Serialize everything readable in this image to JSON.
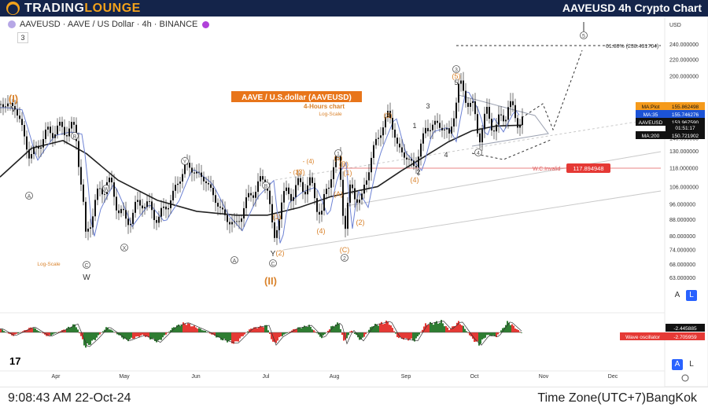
{
  "header": {
    "brand_part1": "TRADING",
    "brand_part2": "LOUNGE",
    "title": "AAVEUSD 4h Crypto Chart"
  },
  "symbol_line": "AAVEUSD · AAVE / US Dollar · 4h · BINANCE",
  "indicator_count": "3",
  "footer": {
    "time": "9:08:43 AM 22-Oct-24",
    "timezone": "Time Zone(UTC+7)BangKok"
  },
  "tv_logo": "17",
  "buttons": {
    "auto": "A",
    "log": "L"
  },
  "chart_data": {
    "type": "candlestick",
    "price_axis": {
      "currency": "USD",
      "scale": "log",
      "ticks": [
        "240.000000",
        "220.000000",
        "200.000000",
        "160.000000",
        "150.000000",
        "140.000000",
        "130.000000",
        "118.000000",
        "106.000000",
        "96.000000",
        "88.000000",
        "80.000000",
        "74.000000",
        "68.000000",
        "63.000000"
      ],
      "tick_values": [
        240,
        220,
        200,
        160,
        150,
        140,
        130,
        118,
        106,
        96,
        88,
        80,
        74,
        68,
        63
      ]
    },
    "time_axis": [
      "Apr",
      "May",
      "Jun",
      "Jul",
      "Aug",
      "Sep",
      "Oct",
      "Nov",
      "Dec"
    ],
    "labels": [
      {
        "name": "MA:Plot",
        "value": "155.862498",
        "bg": "#f59a1b",
        "fg": "#111111",
        "y": 155.86
      },
      {
        "name": "MA:35",
        "value": "155.746276",
        "bg": "#1c53d6",
        "fg": "#ffffff",
        "y": 155.75
      },
      {
        "name": "AAVEUSD",
        "value": "153.967590",
        "bg": "#111111",
        "fg": "#ffffff",
        "y": 153.97
      },
      {
        "name": "",
        "value": "01:51:17",
        "bg": "#111111",
        "fg": "#ffffff",
        "y": 151.3
      },
      {
        "name": "MA:200",
        "value": "150.721902",
        "bg": "#111111",
        "fg": "#ffffff",
        "y": 150.72
      }
    ],
    "indicator": {
      "name": "Wave oscillator",
      "values": [
        "-2.445885",
        "-2.705959"
      ]
    },
    "annotations": {
      "title": "AAVE / U.S.dollar (AAVEUSD)",
      "subtitle": "4-Hours chart",
      "scale_note": "Log-Scale",
      "scale_note_left": "Log-Scale",
      "fib_level": "61.80% (238.431704)",
      "invalidation_label": "W.C.Invalid",
      "invalidation_value": "117.894948",
      "wave_labels": [
        {
          "t": "(I)",
          "x": 17,
          "y": 130,
          "c": "#d9822b",
          "s": 13,
          "b": true
        },
        {
          "t": "(II)",
          "x": 344,
          "y": 362,
          "c": "#d9822b",
          "s": 13,
          "b": true
        },
        {
          "t": "W",
          "x": 110,
          "y": 356,
          "c": "#333",
          "s": 10
        },
        {
          "t": "Y",
          "x": 347,
          "y": 326,
          "c": "#333",
          "s": 10
        },
        {
          "t": "2",
          "x": 532,
          "y": 222,
          "c": "#333",
          "s": 9
        },
        {
          "t": "4",
          "x": 567,
          "y": 200,
          "c": "#333",
          "s": 9
        },
        {
          "t": "1",
          "x": 527,
          "y": 163,
          "c": "#333",
          "s": 9
        },
        {
          "t": "3",
          "x": 544,
          "y": 138,
          "c": "#333",
          "s": 9
        },
        {
          "t": "5",
          "x": 580,
          "y": 108,
          "c": "#333",
          "s": 9
        },
        {
          "t": "(1)",
          "x": 442,
          "y": 223,
          "c": "#d9822b",
          "s": 9
        },
        {
          "t": "(2)",
          "x": 458,
          "y": 286,
          "c": "#d9822b",
          "s": 9
        },
        {
          "t": "(3)",
          "x": 493,
          "y": 150,
          "c": "#d9822b",
          "s": 9
        },
        {
          "t": "(4)",
          "x": 527,
          "y": 232,
          "c": "#d9822b",
          "s": 9
        },
        {
          "t": "(5)",
          "x": 580,
          "y": 100,
          "c": "#d9822b",
          "s": 9
        },
        {
          "t": "(1)",
          "x": 352,
          "y": 279,
          "c": "#d9822b",
          "s": 9
        },
        {
          "t": "(2)",
          "x": 356,
          "y": 325,
          "c": "#d9822b",
          "s": 9
        },
        {
          "t": "(3)",
          "x": 382,
          "y": 222,
          "c": "#d9822b",
          "s": 9
        },
        {
          "t": "(4)",
          "x": 408,
          "y": 297,
          "c": "#d9822b",
          "s": 9
        },
        {
          "t": "(5)",
          "x": 430,
          "y": 204,
          "c": "#d9822b",
          "s": 9
        },
        {
          "t": "(A)",
          "x": 430,
          "y": 250,
          "c": "#d9822b",
          "s": 9
        },
        {
          "t": "(B)",
          "x": 437,
          "y": 212,
          "c": "#d9822b",
          "s": 9
        },
        {
          "t": "(C)",
          "x": 438,
          "y": 321,
          "c": "#d9822b",
          "s": 9
        },
        {
          "t": "- (3)",
          "x": 375,
          "y": 222,
          "c": "#d9822b",
          "s": 8
        },
        {
          "t": "- (4)",
          "x": 392,
          "y": 208,
          "c": "#d9822b",
          "s": 8
        }
      ],
      "circled": [
        {
          "t": "A",
          "x": 37,
          "y": 252,
          "c": "#555"
        },
        {
          "t": "B",
          "x": 95,
          "y": 176,
          "c": "#555"
        },
        {
          "t": "C",
          "x": 110,
          "y": 340,
          "c": "#555"
        },
        {
          "t": "W",
          "x": 135,
          "y": 243,
          "c": "#555"
        },
        {
          "t": "X",
          "x": 158,
          "y": 318,
          "c": "#555"
        },
        {
          "t": "Y",
          "x": 235,
          "y": 208,
          "c": "#555"
        },
        {
          "t": "A",
          "x": 298,
          "y": 334,
          "c": "#555"
        },
        {
          "t": "B",
          "x": 338,
          "y": 239,
          "c": "#555"
        },
        {
          "t": "C",
          "x": 347,
          "y": 338,
          "c": "#555"
        },
        {
          "t": "1",
          "x": 430,
          "y": 198,
          "c": "#555"
        },
        {
          "t": "2",
          "x": 438,
          "y": 331,
          "c": "#555"
        },
        {
          "t": "3",
          "x": 580,
          "y": 91,
          "c": "#555"
        },
        {
          "t": "4",
          "x": 608,
          "y": 197,
          "c": "#555"
        },
        {
          "t": "5",
          "x": 742,
          "y": 48,
          "c": "#555"
        }
      ]
    },
    "series": {
      "price_keypoints": [
        [
          0,
          170
        ],
        [
          18,
          168
        ],
        [
          37,
          125
        ],
        [
          60,
          145
        ],
        [
          80,
          148
        ],
        [
          95,
          146
        ],
        [
          108,
          78
        ],
        [
          118,
          95
        ],
        [
          135,
          110
        ],
        [
          158,
          86
        ],
        [
          180,
          98
        ],
        [
          200,
          88
        ],
        [
          218,
          100
        ],
        [
          235,
          120
        ],
        [
          260,
          110
        ],
        [
          280,
          92
        ],
        [
          298,
          84
        ],
        [
          318,
          102
        ],
        [
          338,
          112
        ],
        [
          347,
          74
        ],
        [
          356,
          98
        ],
        [
          375,
          105
        ],
        [
          392,
          108
        ],
        [
          408,
          90
        ],
        [
          420,
          116
        ],
        [
          430,
          124
        ],
        [
          437,
          82
        ],
        [
          445,
          106
        ],
        [
          458,
          96
        ],
        [
          472,
          128
        ],
        [
          493,
          162
        ],
        [
          505,
          132
        ],
        [
          527,
          118
        ],
        [
          540,
          148
        ],
        [
          560,
          152
        ],
        [
          570,
          140
        ],
        [
          583,
          190
        ],
        [
          600,
          165
        ],
        [
          608,
          142
        ],
        [
          618,
          160
        ],
        [
          630,
          148
        ],
        [
          645,
          168
        ],
        [
          655,
          158
        ],
        [
          663,
          154
        ]
      ],
      "ma200_keypoints": [
        [
          0,
          112
        ],
        [
          40,
          132
        ],
        [
          80,
          138
        ],
        [
          110,
          128
        ],
        [
          150,
          110
        ],
        [
          200,
          98
        ],
        [
          250,
          92
        ],
        [
          300,
          90
        ],
        [
          340,
          90
        ],
        [
          380,
          94
        ],
        [
          420,
          100
        ],
        [
          450,
          103
        ],
        [
          480,
          106
        ],
        [
          510,
          116
        ],
        [
          540,
          126
        ],
        [
          570,
          137
        ],
        [
          600,
          146
        ],
        [
          630,
          150
        ],
        [
          663,
          150.7
        ]
      ],
      "osc_keypoints": [
        [
          0,
          5
        ],
        [
          15,
          -5
        ],
        [
          40,
          8
        ],
        [
          60,
          -6
        ],
        [
          80,
          4
        ],
        [
          95,
          12
        ],
        [
          108,
          -22
        ],
        [
          120,
          -10
        ],
        [
          135,
          8
        ],
        [
          160,
          -12
        ],
        [
          180,
          -4
        ],
        [
          200,
          -14
        ],
        [
          220,
          8
        ],
        [
          235,
          14
        ],
        [
          260,
          2
        ],
        [
          280,
          -10
        ],
        [
          298,
          -16
        ],
        [
          318,
          6
        ],
        [
          338,
          10
        ],
        [
          347,
          -18
        ],
        [
          356,
          -6
        ],
        [
          375,
          6
        ],
        [
          392,
          10
        ],
        [
          408,
          -8
        ],
        [
          420,
          8
        ],
        [
          430,
          14
        ],
        [
          437,
          -16
        ],
        [
          445,
          4
        ],
        [
          458,
          -12
        ],
        [
          472,
          10
        ],
        [
          493,
          16
        ],
        [
          505,
          -8
        ],
        [
          527,
          -12
        ],
        [
          540,
          12
        ],
        [
          560,
          16
        ],
        [
          570,
          4
        ],
        [
          583,
          16
        ],
        [
          600,
          -10
        ],
        [
          608,
          -18
        ],
        [
          618,
          -4
        ],
        [
          630,
          -6
        ],
        [
          645,
          16
        ],
        [
          655,
          6
        ],
        [
          663,
          -2
        ]
      ]
    }
  }
}
